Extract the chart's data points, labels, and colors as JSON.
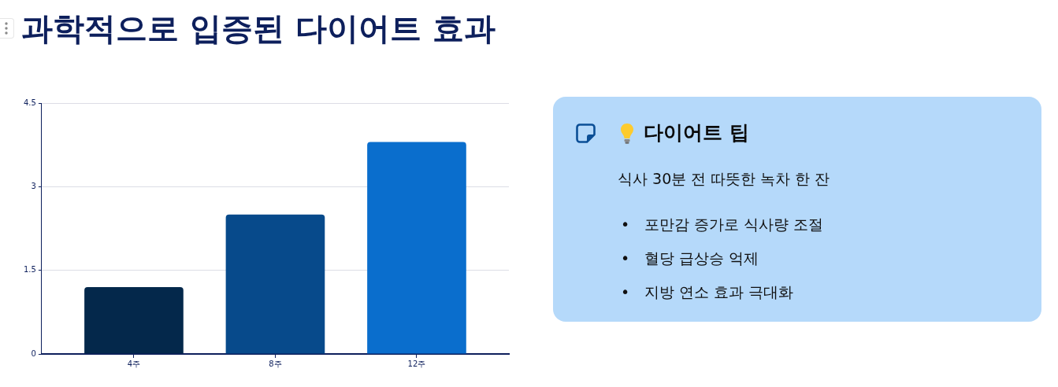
{
  "chart_data": [
    {
      "type": "bar",
      "title": "과학적으로 입증된 다이어트 효과",
      "categories": [
        "4주",
        "8주",
        "12주"
      ],
      "values": [
        1.2,
        2.5,
        3.8
      ],
      "colors": [
        "#04284b",
        "#074a8b",
        "#0a6ecd"
      ],
      "ylim": [
        0,
        4.5
      ],
      "yticks": [
        0,
        1.5,
        3,
        4.5
      ],
      "grid": "y"
    },
    {
      "type": "other",
      "title": "다이어트 팁",
      "subtitle": "식사 30분 전 따뜻한 녹차 한 잔",
      "annotations": [
        "• 포만감 증가로 식사량 조절",
        "• 혈당 급상승 억제",
        "• 지방 연소 효과 극대화"
      ]
    }
  ]
}
